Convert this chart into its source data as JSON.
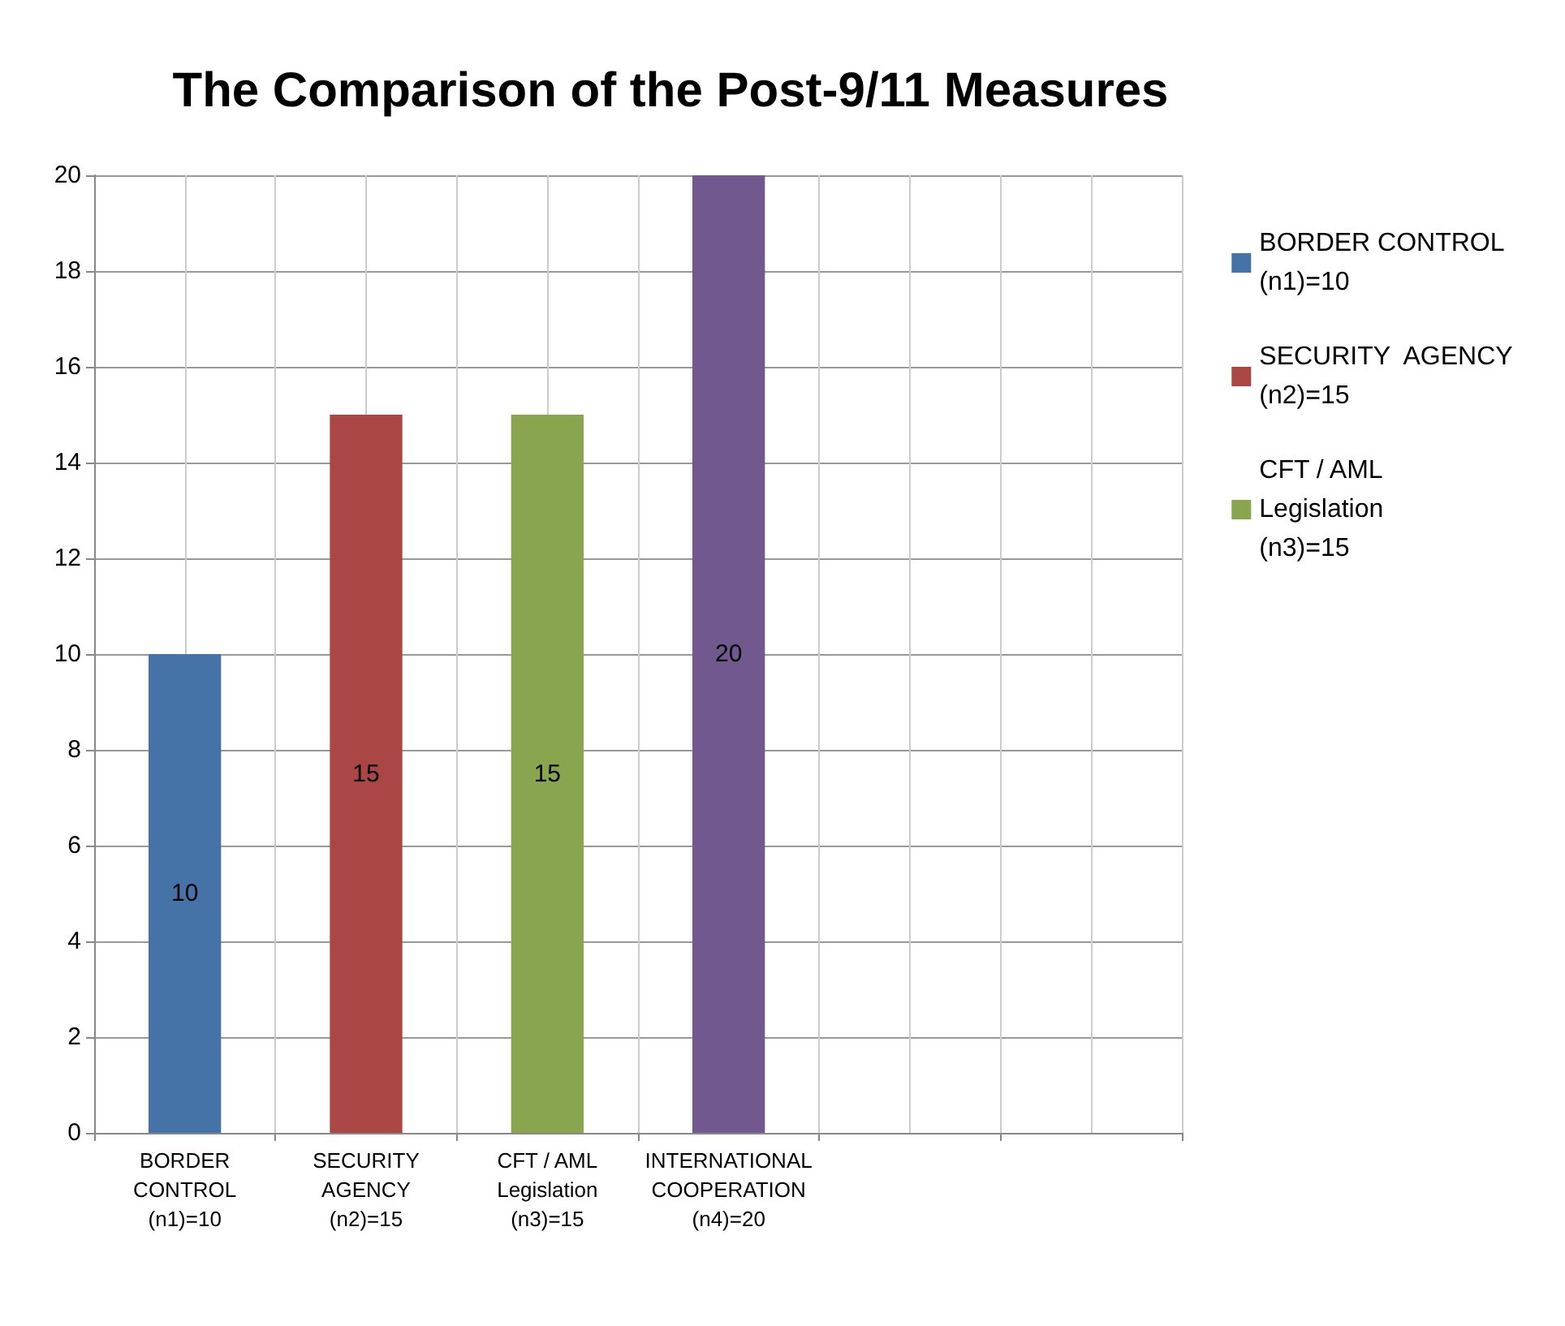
{
  "chart_data": {
    "type": "bar",
    "title": "The Comparison of the Post-9/11 Measures",
    "categories": [
      "BORDER\nCONTROL\n(n1)=10",
      "SECURITY\nAGENCY\n(n2)=15",
      "CFT / AML\nLegislation\n(n3)=15",
      "INTERNATIONAL\nCOOPERATION\n(n4)=20",
      null,
      null
    ],
    "series": [
      {
        "name": "BORDER CONTROL\n(n1)=10",
        "color": "#4572a7",
        "values": [
          10,
          null,
          null,
          null,
          null,
          null
        ]
      },
      {
        "name": "SECURITY  AGENCY\n(n2)=15",
        "color": "#aa4643",
        "values": [
          null,
          15,
          null,
          null,
          null,
          null
        ]
      },
      {
        "name": "CFT / AML\nLegislation\n(n3)=15",
        "color": "#89a54e",
        "values": [
          null,
          null,
          15,
          null,
          null,
          null
        ]
      },
      {
        "color": "#71588f",
        "values": [
          null,
          null,
          null,
          20,
          null,
          null
        ]
      }
    ],
    "stacked": true,
    "ylim": [
      0,
      20
    ],
    "yticks": [
      0,
      2,
      4,
      6,
      8,
      10,
      12,
      14,
      16,
      18,
      20
    ],
    "grid": true,
    "legend": "right",
    "data_labels": true
  }
}
